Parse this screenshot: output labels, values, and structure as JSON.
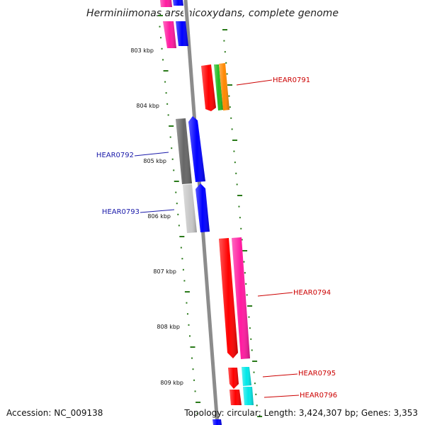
{
  "title": "Herminiimonas arsenicoxydans, complete genome",
  "accession": "Accession: NC_009138",
  "topology": "Topology: circular; Length: 3,424,307 bp; Genes: 3,353",
  "colors": {
    "backbone": "#8c8c8c",
    "tick": "#2a7a1a",
    "label_forward": "#cc0000",
    "label_reverse": "#1a1aaa",
    "red": "#ff0000",
    "blue": "#0000ff",
    "magenta": "#ff1aa0",
    "green": "#22bb22",
    "orange": "#ff8800",
    "dark_gray": "#666666",
    "light_gray": "#c8c8c8",
    "cyan": "#00e8e8"
  },
  "ruler": {
    "unit": "kbp",
    "labels": [
      "803 kbp",
      "804 kbp",
      "805 kbp",
      "806 kbp",
      "807 kbp",
      "808 kbp",
      "809 kbp"
    ]
  },
  "gene_labels": [
    {
      "name": "HEAR0791",
      "strand": "forward"
    },
    {
      "name": "HEAR0792",
      "strand": "reverse"
    },
    {
      "name": "HEAR0793",
      "strand": "reverse"
    },
    {
      "name": "HEAR0794",
      "strand": "forward"
    },
    {
      "name": "HEAR0795",
      "strand": "forward"
    },
    {
      "name": "HEAR0796",
      "strand": "forward"
    }
  ]
}
